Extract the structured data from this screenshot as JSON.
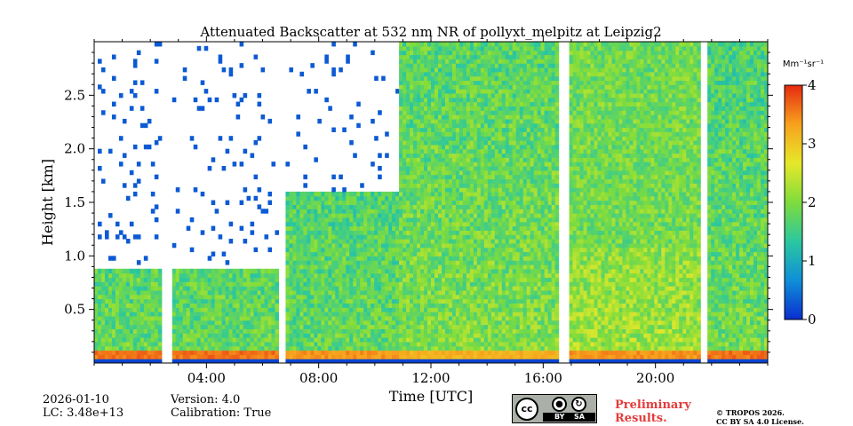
{
  "chart_data": {
    "type": "heatmap",
    "title": "Attenuated Backscatter at 532 nm NR of pollyxt_melpitz at Leipzig2",
    "xlabel": "Time [UTC]",
    "ylabel": "Height [km]",
    "xlim": [
      0,
      24
    ],
    "ylim": [
      0,
      3.0
    ],
    "x_ticks": [
      4,
      8,
      12,
      16,
      20
    ],
    "x_tick_labels": [
      "04:00",
      "08:00",
      "12:00",
      "16:00",
      "20:00"
    ],
    "y_ticks": [
      0.5,
      1.0,
      1.5,
      2.0,
      2.5
    ],
    "y_tick_labels": [
      "0.5",
      "1.0",
      "1.5",
      "2.0",
      "2.5"
    ],
    "colorbar": {
      "label": "Mm⁻¹sr⁻¹",
      "range": [
        0,
        4
      ],
      "ticks": [
        0,
        1,
        2,
        3,
        4
      ],
      "tick_labels": [
        "0",
        "1",
        "2",
        "3",
        "4"
      ],
      "colormap": [
        "#0a2ecf",
        "#0f8fd8",
        "#2bc7a0",
        "#7fdc3c",
        "#e6e82a",
        "#f7a21d",
        "#e62a10"
      ]
    },
    "data_gaps_utc": [
      [
        2.45,
        2.75
      ],
      [
        6.55,
        6.85
      ],
      [
        16.6,
        16.9
      ],
      [
        21.6,
        21.85
      ]
    ],
    "regimes": [
      {
        "start": 0.0,
        "end": 6.55,
        "surface_value": 3.6,
        "boundary_layer_top_km": 0.9,
        "boundary_layer_value": 1.8,
        "aloft": "clear"
      },
      {
        "start": 6.85,
        "end": 10.9,
        "surface_value": 3.4,
        "boundary_layer_top_km": 1.6,
        "boundary_layer_value": 1.8,
        "aloft": "clear"
      },
      {
        "start": 10.9,
        "end": 16.6,
        "surface_value": 3.2,
        "boundary_layer_top_km": 3.0,
        "boundary_layer_value": 2.0,
        "aloft": "noisy"
      },
      {
        "start": 16.9,
        "end": 21.6,
        "surface_value": 3.4,
        "boundary_layer_top_km": 1.1,
        "boundary_layer_value": 2.2,
        "aloft": "noisy"
      },
      {
        "start": 21.85,
        "end": 24.0,
        "surface_value": 3.6,
        "boundary_layer_top_km": 3.0,
        "boundary_layer_value": 1.9,
        "aloft": "noisy"
      }
    ]
  },
  "footer": {
    "date": "2026-01-10",
    "lc": "LC: 3.48e+13",
    "version": "Version: 4.0",
    "calibration": "Calibration: True",
    "preliminary_line1": "Preliminary",
    "preliminary_line2": "Results.",
    "copyright_line1": "© TROPOS 2026.",
    "copyright_line2": "CC BY SA 4.0 License.",
    "license_badge": {
      "cc": "cc",
      "by": "BY",
      "sa": "SA"
    }
  }
}
